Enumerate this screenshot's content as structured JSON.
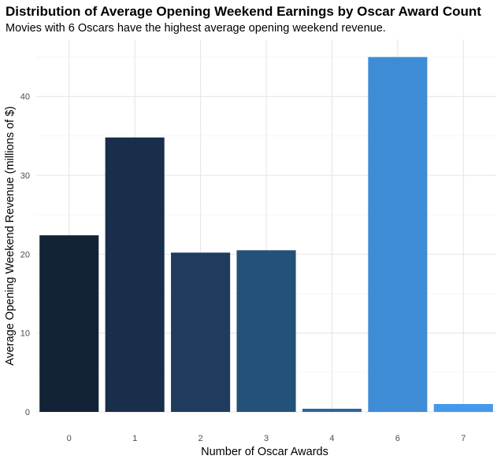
{
  "chart_data": {
    "type": "bar",
    "title": "Distribution of Average Opening Weekend Earnings by Oscar Award Count",
    "subtitle": "Movies with 6 Oscars have the highest average opening weekend revenue.",
    "xlabel": "Number of Oscar Awards",
    "ylabel": "Average Opening Weekend Revenue (millions of $)",
    "categories": [
      "0",
      "1",
      "2",
      "3",
      "4",
      "6",
      "7"
    ],
    "values": [
      22.4,
      34.8,
      20.2,
      20.5,
      0.4,
      45.0,
      1.0
    ],
    "colors": [
      "#132336",
      "#182e4b",
      "#1f3c5f",
      "#245178",
      "#2c669a",
      "#3f8cd6",
      "#4499ea"
    ],
    "ylim": [
      0,
      47.25
    ],
    "yticks": [
      0,
      10,
      20,
      30,
      40
    ],
    "ytick_labels": [
      "0",
      "10",
      "20",
      "30",
      "40"
    ],
    "grid": true,
    "legend": "none"
  }
}
